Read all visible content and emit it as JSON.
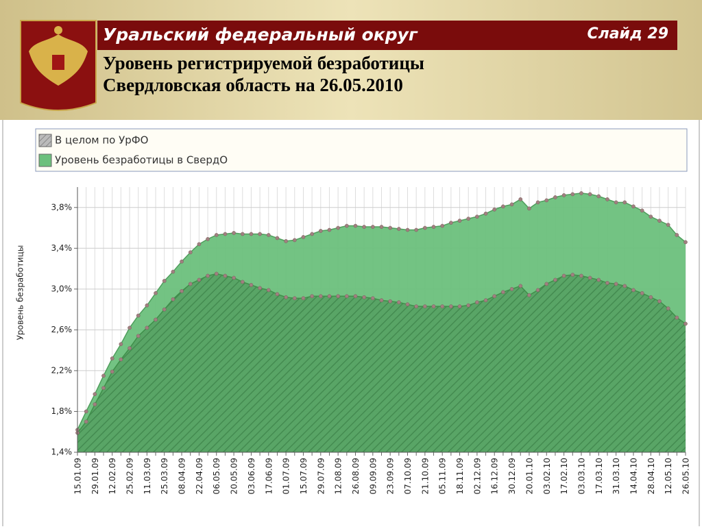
{
  "slide": {
    "region": "Уральский федеральный округ",
    "number": "Слайд 29",
    "title_lines": [
      "Уровень регистрируемой безработицы",
      "Свердловская область на 26.05.2010"
    ]
  },
  "chart_data": {
    "type": "area",
    "y_label": "Уровень безработицы",
    "categories": [
      "15.01.09",
      null,
      "29.01.09",
      null,
      "12.02.09",
      null,
      "25.02.09",
      null,
      "11.03.09",
      null,
      "25.03.09",
      null,
      "08.04.09",
      null,
      "22.04.09",
      null,
      "06.05.09",
      null,
      "20.05.09",
      null,
      "03.06.09",
      null,
      "17.06.09",
      null,
      "01.07.09",
      null,
      "15.07.09",
      null,
      "29.07.09",
      null,
      "12.08.09",
      null,
      "26.08.09",
      null,
      "09.09.09",
      null,
      "23.09.09",
      null,
      "07.10.09",
      null,
      "21.10.09",
      null,
      "05.11.09",
      null,
      "18.11.09",
      null,
      "02.12.09",
      null,
      "16.12.09",
      null,
      "30.12.09",
      null,
      "20.01.10",
      null,
      "03.02.10",
      null,
      "17.02.10",
      null,
      "03.03.10",
      null,
      "17.03.10",
      null,
      "31.03.10",
      null,
      "14.04.10",
      null,
      "28.04.10",
      null,
      "12.05.10",
      null,
      "26.05.10"
    ],
    "series": [
      {
        "name": "В целом по УрФО",
        "color": "#a8a8a8",
        "hatched": true,
        "values": [
          1.59,
          1.7,
          1.87,
          2.03,
          2.19,
          2.31,
          2.42,
          2.54,
          2.62,
          2.7,
          2.8,
          2.9,
          2.98,
          3.05,
          3.09,
          3.13,
          3.15,
          3.13,
          3.11,
          3.07,
          3.04,
          3.01,
          2.99,
          2.95,
          2.92,
          2.91,
          2.91,
          2.93,
          2.93,
          2.93,
          2.93,
          2.93,
          2.93,
          2.92,
          2.91,
          2.89,
          2.88,
          2.87,
          2.85,
          2.83,
          2.83,
          2.83,
          2.83,
          2.83,
          2.83,
          2.84,
          2.87,
          2.89,
          2.93,
          2.97,
          3.0,
          3.03,
          2.94,
          2.99,
          3.05,
          3.09,
          3.13,
          3.14,
          3.13,
          3.11,
          3.09,
          3.06,
          3.05,
          3.03,
          2.99,
          2.96,
          2.92,
          2.88,
          2.81,
          2.72,
          2.66
        ]
      },
      {
        "name": "Уровень безработицы в СвердО",
        "color": "#6cc07c",
        "hatched": false,
        "values": [
          1.62,
          1.8,
          1.97,
          2.15,
          2.32,
          2.46,
          2.62,
          2.74,
          2.84,
          2.96,
          3.08,
          3.17,
          3.27,
          3.36,
          3.44,
          3.49,
          3.53,
          3.54,
          3.55,
          3.54,
          3.54,
          3.54,
          3.53,
          3.5,
          3.47,
          3.48,
          3.51,
          3.54,
          3.57,
          3.58,
          3.6,
          3.62,
          3.62,
          3.61,
          3.61,
          3.61,
          3.6,
          3.59,
          3.58,
          3.58,
          3.6,
          3.61,
          3.62,
          3.65,
          3.67,
          3.69,
          3.71,
          3.74,
          3.78,
          3.81,
          3.83,
          3.88,
          3.79,
          3.85,
          3.87,
          3.9,
          3.92,
          3.93,
          3.94,
          3.93,
          3.91,
          3.88,
          3.85,
          3.85,
          3.81,
          3.77,
          3.71,
          3.67,
          3.63,
          3.53,
          3.46
        ]
      }
    ],
    "ylim": [
      1.4,
      4.0
    ],
    "yticks": [
      {
        "value": 1.4,
        "label": "1,4%"
      },
      {
        "value": 1.8,
        "label": "1,8%"
      },
      {
        "value": 2.2,
        "label": "2,2%"
      },
      {
        "value": 2.6,
        "label": "2,6%"
      },
      {
        "value": 3.0,
        "label": "3,0%"
      },
      {
        "value": 3.4,
        "label": "3,4%"
      },
      {
        "value": 3.8,
        "label": "3,8%"
      }
    ],
    "grid": true,
    "legend": "top"
  }
}
